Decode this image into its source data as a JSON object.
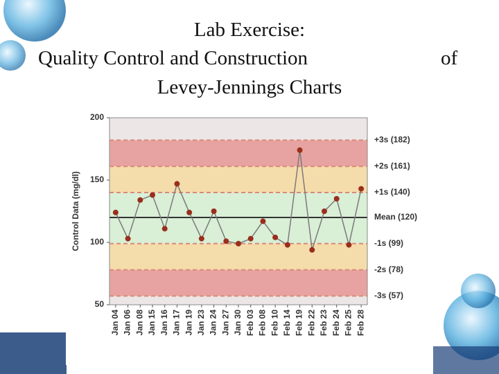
{
  "chart_data": {
    "type": "line",
    "title_lines": [
      "Lab Exercise:",
      "Quality Control and Construction",
      "of",
      "Levey-Jennings Charts"
    ],
    "y_label": "Control Data (mg/dl)",
    "categories": [
      "Jan 04",
      "Jan 06",
      "Jan 08",
      "Jan 15",
      "Jan 16",
      "Jan 17",
      "Jan 19",
      "Jan 23",
      "Jan 24",
      "Jan 27",
      "Jan 30",
      "Feb 03",
      "Feb 08",
      "Feb 10",
      "Feb 14",
      "Feb 19",
      "Feb 22",
      "Feb 23",
      "Feb 24",
      "Feb 25",
      "Feb 28"
    ],
    "values": [
      124,
      103,
      134,
      138,
      111,
      147,
      124,
      103,
      125,
      101,
      99,
      103,
      117,
      104,
      98,
      174,
      94,
      125,
      135,
      98,
      143
    ],
    "color": "#9a2e1c",
    "line_color": "#7a7a7a",
    "ylim": [
      50,
      200
    ],
    "yticks": [
      50,
      100,
      150,
      200
    ],
    "reference_lines": [
      {
        "value": 182,
        "label": "+3s (182)"
      },
      {
        "value": 161,
        "label": "+2s (161)"
      },
      {
        "value": 140,
        "label": "+1s (140)"
      },
      {
        "value": 120,
        "label": "Mean (120)"
      },
      {
        "value": 99,
        "label": "-1s (99)"
      },
      {
        "value": 78,
        "label": "-2s (78)"
      },
      {
        "value": 57,
        "label": "-3s (57)"
      }
    ],
    "band_colors": [
      "#ece6e6",
      "#e7a3a1",
      "#f5dcab",
      "#d9efd6",
      "#d9efd6",
      "#f5dcab",
      "#e7a3a1",
      "#ece6e6"
    ]
  }
}
